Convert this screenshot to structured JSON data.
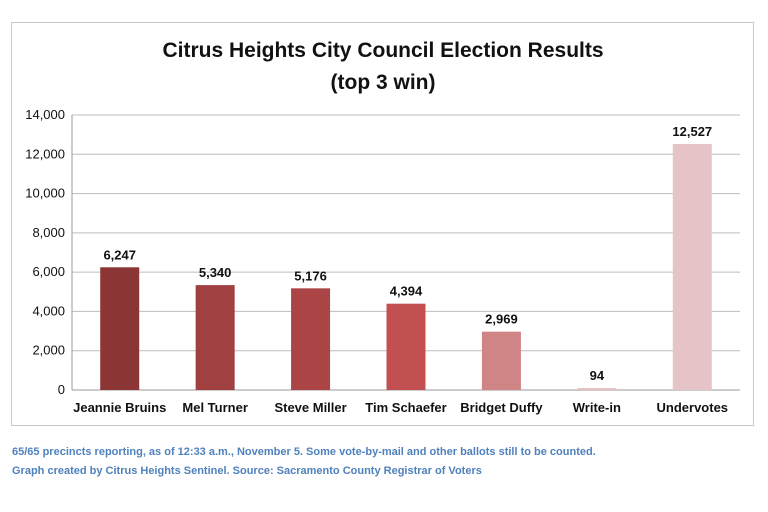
{
  "chart_data": {
    "type": "bar",
    "title": "Citrus Heights City Council Election Results",
    "subtitle": "(top 3 win)",
    "categories": [
      "Jeannie Bruins",
      "Mel Turner",
      "Steve Miller",
      "Tim Schaefer",
      "Bridget Duffy",
      "Write-in",
      "Undervotes"
    ],
    "values": [
      6247,
      5340,
      5176,
      4394,
      2969,
      94,
      12527
    ],
    "data_labels": [
      "6,247",
      "5,340",
      "5,176",
      "4,394",
      "2,969",
      "94",
      "12,527"
    ],
    "colors": [
      "#8b3535",
      "#a04040",
      "#ab4545",
      "#c25050",
      "#cf8585",
      "#e6bcbc",
      "#e6c3c6"
    ],
    "ylim": [
      0,
      14000
    ],
    "yticks": [
      0,
      2000,
      4000,
      6000,
      8000,
      10000,
      12000,
      14000
    ],
    "ytick_labels": [
      "0",
      "2,000",
      "4,000",
      "6,000",
      "8,000",
      "10,000",
      "12,000",
      "14,000"
    ],
    "xlabel": "",
    "ylabel": "",
    "grid": true,
    "legend": "none"
  },
  "footnotes": {
    "line1": "65/65 precincts reporting, as of 12:33 a.m., November 5. Some vote-by-mail and other ballots still to be counted.",
    "line2": "Graph created by Citrus Heights Sentinel. Source: Sacramento County Registrar of Voters",
    "color": "#4f81bd"
  }
}
